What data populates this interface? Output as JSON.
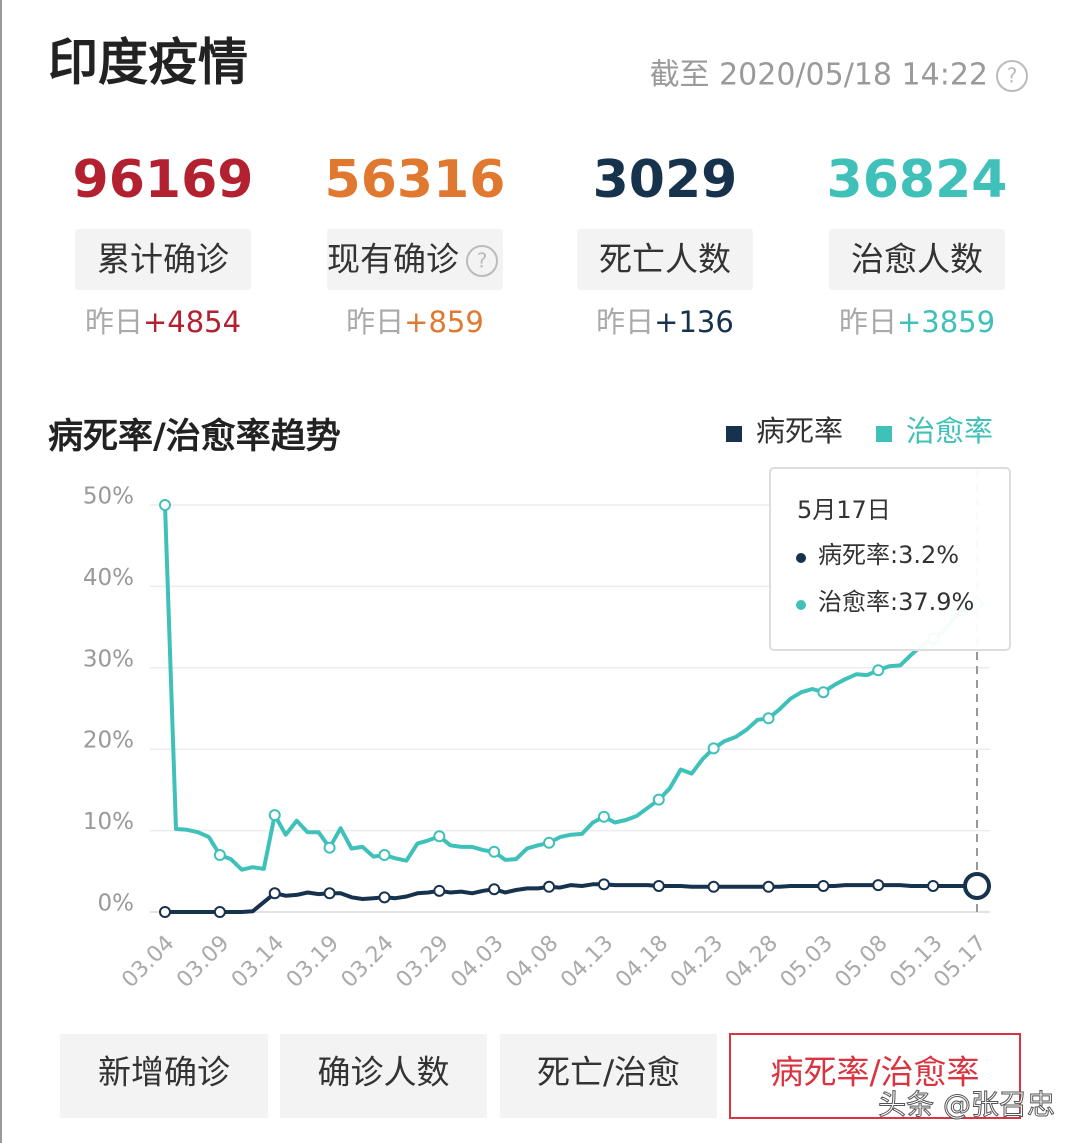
{
  "header": {
    "title": "印度疫情",
    "timestamp": "截至 2020/05/18 14:22"
  },
  "stats": [
    {
      "value": 96169,
      "label": "累计确诊",
      "yesterday": "昨日",
      "delta": "+4854",
      "color": "#b3202f"
    },
    {
      "value": 56316,
      "label": "现有确诊",
      "yesterday": "昨日",
      "delta": "+859",
      "color": "#e0782f"
    },
    {
      "value": 3029,
      "label": "死亡人数",
      "yesterday": "昨日",
      "delta": "+136",
      "color": "#17324d"
    },
    {
      "value": 36824,
      "label": "治愈人数",
      "yesterday": "昨日",
      "delta": "+3859",
      "color": "#3fc1b9"
    }
  ],
  "chart_data": {
    "type": "line",
    "title": "病死率/治愈率趋势",
    "categories": [
      "03.04",
      null,
      null,
      null,
      null,
      "03.09",
      null,
      null,
      null,
      null,
      "03.14",
      null,
      null,
      null,
      null,
      "03.19",
      null,
      null,
      null,
      null,
      "03.24",
      null,
      null,
      null,
      null,
      "03.29",
      null,
      null,
      null,
      null,
      "04.03",
      null,
      null,
      null,
      null,
      "04.08",
      null,
      null,
      null,
      null,
      "04.13",
      null,
      null,
      null,
      null,
      "04.18",
      null,
      null,
      null,
      null,
      "04.23",
      null,
      null,
      null,
      null,
      "04.28",
      null,
      null,
      null,
      null,
      "05.03",
      null,
      null,
      null,
      null,
      "05.08",
      null,
      null,
      null,
      null,
      "05.13",
      null,
      null,
      null,
      "05.17"
    ],
    "series": [
      {
        "name": "病死率",
        "color": "#17324d",
        "values": [
          0,
          0,
          0,
          0,
          0,
          0,
          0,
          0,
          0.1,
          1.2,
          2.3,
          2.0,
          2.1,
          2.4,
          2.2,
          2.3,
          2.3,
          1.8,
          1.6,
          1.7,
          1.8,
          1.7,
          1.9,
          2.3,
          2.4,
          2.6,
          2.4,
          2.5,
          2.3,
          2.6,
          2.8,
          2.4,
          2.7,
          2.9,
          2.9,
          3.1,
          3.0,
          3.3,
          3.2,
          3.4,
          3.4,
          3.3,
          3.3,
          3.3,
          3.3,
          3.2,
          3.2,
          3.2,
          3.1,
          3.1,
          3.1,
          3.1,
          3.1,
          3.1,
          3.1,
          3.1,
          3.1,
          3.2,
          3.2,
          3.2,
          3.2,
          3.2,
          3.3,
          3.3,
          3.3,
          3.3,
          3.3,
          3.3,
          3.2,
          3.2,
          3.2,
          3.2,
          3.2,
          3.2,
          3.2
        ]
      },
      {
        "name": "治愈率",
        "color": "#3fc1b9",
        "values": [
          50,
          10.2,
          10.1,
          9.8,
          9.2,
          7.0,
          6.5,
          5.2,
          5.5,
          5.3,
          11.9,
          9.5,
          11.2,
          9.8,
          9.8,
          7.9,
          10.3,
          7.8,
          8.0,
          6.8,
          7.0,
          6.6,
          6.3,
          8.4,
          8.8,
          9.3,
          8.2,
          8.0,
          8.0,
          7.6,
          7.4,
          6.4,
          6.5,
          7.8,
          8.2,
          8.5,
          9.2,
          9.5,
          9.6,
          11.0,
          11.7,
          11.0,
          11.3,
          11.8,
          12.8,
          13.8,
          15.2,
          17.5,
          17.0,
          18.8,
          20.1,
          21.0,
          21.5,
          22.4,
          23.6,
          23.8,
          24.9,
          26.2,
          27.0,
          27.4,
          27.0,
          27.9,
          28.6,
          29.2,
          29.1,
          29.7,
          30.2,
          30.3,
          31.6,
          32.8,
          33.6,
          34.6,
          36.3,
          37.2,
          37.9
        ]
      }
    ],
    "ylim": [
      0,
      50
    ],
    "yticks": [
      {
        "value": 0,
        "label": "0%"
      },
      {
        "value": 10,
        "label": "10%"
      },
      {
        "value": 20,
        "label": "20%"
      },
      {
        "value": 30,
        "label": "30%"
      },
      {
        "value": 40,
        "label": "40%"
      },
      {
        "value": 50,
        "label": "50%"
      }
    ],
    "grid": true,
    "legend": "top-right",
    "tooltip": {
      "title": "5月17日",
      "items": [
        "病死率:3.2%",
        "治愈率:37.9%"
      ]
    }
  },
  "tabs": [
    {
      "label": "新增确诊",
      "active": false
    },
    {
      "label": "确诊人数",
      "active": false
    },
    {
      "label": "死亡/治愈",
      "active": false
    },
    {
      "label": "病死率/治愈率",
      "active": true
    }
  ],
  "watermark": "头条 @张召忠"
}
